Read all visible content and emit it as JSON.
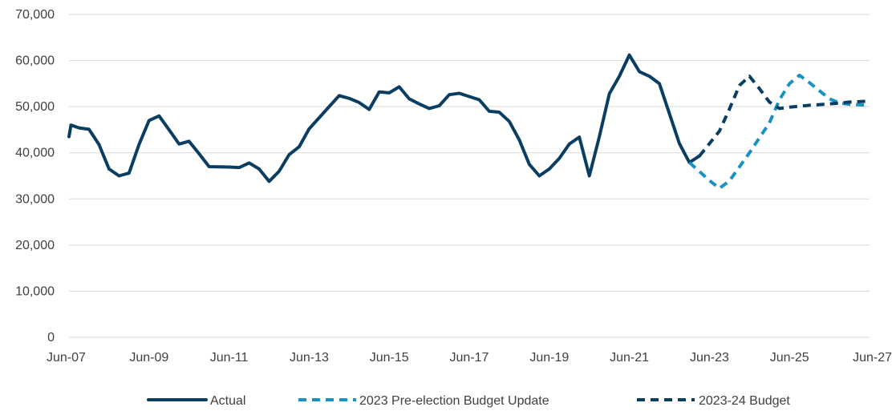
{
  "chart_data": {
    "type": "line",
    "title": "",
    "xlabel": "",
    "ylabel": "",
    "ylim": [
      0,
      70000
    ],
    "yticks": [
      0,
      10000,
      20000,
      30000,
      40000,
      50000,
      60000,
      70000
    ],
    "ytick_labels": [
      "0",
      "10,000",
      "20,000",
      "30,000",
      "40,000",
      "50,000",
      "60,000",
      "70,000"
    ],
    "xlim": [
      2007.5,
      2027.5
    ],
    "xticks": [
      2007.5,
      2009.5,
      2011.5,
      2013.5,
      2015.5,
      2017.5,
      2019.5,
      2021.5,
      2023.5,
      2025.5,
      2027.5
    ],
    "xtick_labels": [
      "Jun-07",
      "Jun-09",
      "Jun-11",
      "Jun-13",
      "Jun-15",
      "Jun-17",
      "Jun-19",
      "Jun-21",
      "Jun-23",
      "Jun-25",
      "Jun-27"
    ],
    "grid": "horizontal",
    "legend": "bottom",
    "series": [
      {
        "name": "Actual",
        "color": "#0a3d62",
        "dash": "solid",
        "points": [
          [
            2007.5,
            43500
          ],
          [
            2007.55,
            46000
          ],
          [
            2007.75,
            45400
          ],
          [
            2008.0,
            45100
          ],
          [
            2008.25,
            41800
          ],
          [
            2008.5,
            36500
          ],
          [
            2008.75,
            35000
          ],
          [
            2009.0,
            35600
          ],
          [
            2009.25,
            41800
          ],
          [
            2009.5,
            47000
          ],
          [
            2009.75,
            48000
          ],
          [
            2010.0,
            45000
          ],
          [
            2010.25,
            41900
          ],
          [
            2010.5,
            42500
          ],
          [
            2010.75,
            39800
          ],
          [
            2011.0,
            37000
          ],
          [
            2011.5,
            36900
          ],
          [
            2011.75,
            36800
          ],
          [
            2012.0,
            37800
          ],
          [
            2012.25,
            36500
          ],
          [
            2012.5,
            33800
          ],
          [
            2012.75,
            36000
          ],
          [
            2013.0,
            39600
          ],
          [
            2013.25,
            41300
          ],
          [
            2013.5,
            45200
          ],
          [
            2014.0,
            50000
          ],
          [
            2014.25,
            52400
          ],
          [
            2014.5,
            51800
          ],
          [
            2014.75,
            50900
          ],
          [
            2015.0,
            49400
          ],
          [
            2015.25,
            53200
          ],
          [
            2015.5,
            53000
          ],
          [
            2015.75,
            54300
          ],
          [
            2016.0,
            51700
          ],
          [
            2016.25,
            50600
          ],
          [
            2016.5,
            49600
          ],
          [
            2016.75,
            50200
          ],
          [
            2017.0,
            52600
          ],
          [
            2017.25,
            52900
          ],
          [
            2017.5,
            52200
          ],
          [
            2017.75,
            51500
          ],
          [
            2018.0,
            49000
          ],
          [
            2018.25,
            48800
          ],
          [
            2018.5,
            46800
          ],
          [
            2018.75,
            42800
          ],
          [
            2019.0,
            37500
          ],
          [
            2019.25,
            35000
          ],
          [
            2019.5,
            36500
          ],
          [
            2019.75,
            38800
          ],
          [
            2020.0,
            41900
          ],
          [
            2020.25,
            43400
          ],
          [
            2020.5,
            35000
          ],
          [
            2020.75,
            43500
          ],
          [
            2021.0,
            52800
          ],
          [
            2021.25,
            56600
          ],
          [
            2021.5,
            61200
          ],
          [
            2021.75,
            57600
          ],
          [
            2022.0,
            56600
          ],
          [
            2022.25,
            55000
          ],
          [
            2022.5,
            48500
          ],
          [
            2022.75,
            42000
          ],
          [
            2023.0,
            37900
          ],
          [
            2023.25,
            39300
          ]
        ]
      },
      {
        "name": "2023 Pre-election Budget Update",
        "color": "#1892c2",
        "dash": "dashed",
        "points": [
          [
            2023.0,
            37900
          ],
          [
            2023.5,
            34000
          ],
          [
            2023.75,
            32300
          ],
          [
            2024.0,
            33900
          ],
          [
            2024.5,
            40000
          ],
          [
            2025.0,
            46500
          ],
          [
            2025.25,
            51500
          ],
          [
            2025.5,
            55000
          ],
          [
            2025.75,
            56800
          ],
          [
            2026.0,
            55200
          ],
          [
            2026.5,
            51700
          ],
          [
            2026.75,
            50800
          ],
          [
            2027.0,
            50500
          ],
          [
            2027.5,
            50300
          ]
        ]
      },
      {
        "name": "2023-24 Budget",
        "color": "#0a3d62",
        "dash": "dashed",
        "points": [
          [
            2023.25,
            39300
          ],
          [
            2023.5,
            42000
          ],
          [
            2023.75,
            44700
          ],
          [
            2024.0,
            49500
          ],
          [
            2024.25,
            54600
          ],
          [
            2024.5,
            56600
          ],
          [
            2024.75,
            53900
          ],
          [
            2025.0,
            51000
          ],
          [
            2025.25,
            49600
          ],
          [
            2025.5,
            49900
          ],
          [
            2026.0,
            50300
          ],
          [
            2026.5,
            50600
          ],
          [
            2027.0,
            51000
          ],
          [
            2027.5,
            51200
          ]
        ]
      }
    ]
  }
}
